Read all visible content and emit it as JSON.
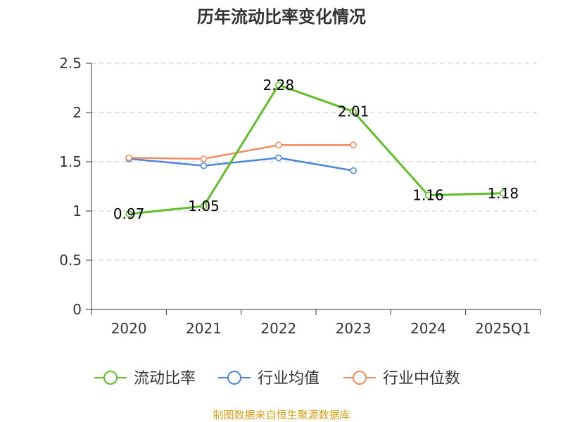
{
  "chart_data": {
    "type": "line",
    "title": "历年流动比率变化情况",
    "categories": [
      "2020",
      "2021",
      "2022",
      "2023",
      "2024",
      "2025Q1"
    ],
    "ylim": [
      0,
      2.5
    ],
    "yticks": [
      "0",
      "0.5",
      "1",
      "1.5",
      "2",
      "2.5"
    ],
    "ytick_values": [
      0,
      0.5,
      1,
      1.5,
      2,
      2.5
    ],
    "grid": true,
    "legend_position": "bottom",
    "series": [
      {
        "name": "流动比率",
        "color": "#5ec026",
        "values": [
          0.97,
          1.05,
          2.28,
          2.01,
          1.16,
          1.18
        ],
        "labels": [
          "0.97",
          "1.05",
          "2.28",
          "2.01",
          "1.16",
          "1.18"
        ]
      },
      {
        "name": "行业均值",
        "color": "#4d84dd",
        "values": [
          1.53,
          1.46,
          1.54,
          1.41,
          null,
          null
        ]
      },
      {
        "name": "行业中位数",
        "color": "#f58a5c",
        "values": [
          1.54,
          1.53,
          1.67,
          1.67,
          null,
          null
        ]
      }
    ]
  },
  "source_text": "制图数据来自恒生聚源数据库"
}
